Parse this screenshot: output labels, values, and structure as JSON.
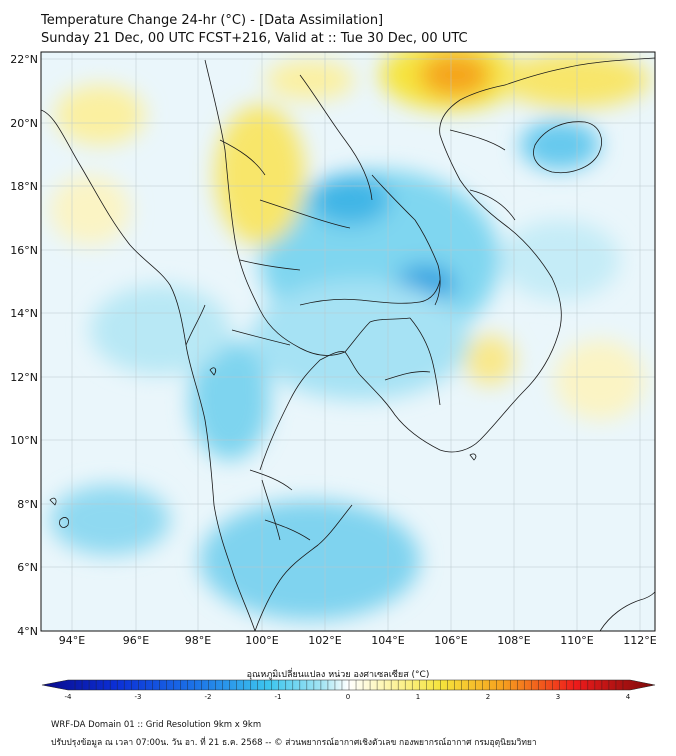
{
  "title_line1": "Temperature Change 24-hr (°C) - [Data Assimilation]",
  "title_line2": "Sunday 21 Dec, 00 UTC FCST+216, Valid at :: Tue 30 Dec, 00 UTC",
  "lat_labels": [
    "22°N",
    "20°N",
    "18°N",
    "16°N",
    "14°N",
    "12°N",
    "10°N",
    "8°N",
    "6°N",
    "4°N"
  ],
  "lon_labels": [
    "94°E",
    "96°E",
    "98°E",
    "100°E",
    "102°E",
    "104°E",
    "106°E",
    "108°E",
    "110°E",
    "112°E"
  ],
  "colorbar": {
    "label": "อุณหภูมิเปลี่ยนแปลง หน่วย องศาเซลเซียส (°C)",
    "min": -4,
    "max": 4,
    "ticks": [
      "-4",
      "-3",
      "-2",
      "-1",
      "0",
      "1",
      "2",
      "3",
      "4"
    ]
  },
  "footer_line1": "WRF-DA Domain 01 :: Grid Resolution 9km x 9km",
  "footer_line2": "ปรับปรุงข้อมูล ณ เวลา 07:00น. วัน อา. ที่ 21 ธ.ค. 2568 -- © ส่วนพยากรณ์อากาศเชิงตัวเลข กองพยากรณ์อากาศ กรมอุตุนิยมวิทยา",
  "colors": {
    "warm": "#f6e43c",
    "hot": "#f59a1e",
    "cool": "#6fd0ee",
    "cold": "#2aa6e0",
    "coast": "#1a1a1a"
  }
}
